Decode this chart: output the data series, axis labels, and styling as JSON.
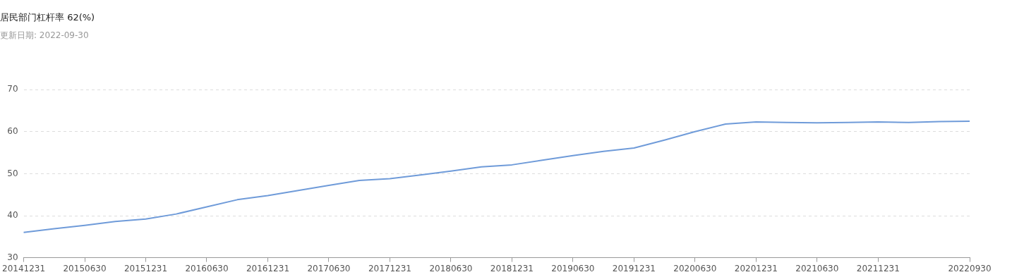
{
  "chart_data": {
    "type": "line",
    "title": "居民部门杠杆率 62(%)",
    "subtitle": "更新日期: 2022-09-30",
    "categories": [
      "20141231",
      null,
      "20150630",
      null,
      "20151231",
      null,
      "20160630",
      null,
      "20161231",
      null,
      "20170630",
      null,
      "20171231",
      null,
      "20180630",
      null,
      "20181231",
      null,
      "20190630",
      null,
      "20191231",
      null,
      "20200630",
      null,
      "20201231",
      null,
      "20210630",
      null,
      "20211231",
      null,
      null,
      "20220930"
    ],
    "series": [
      {
        "color": "#6f9bd9",
        "values": [
          36.0,
          36.9,
          37.7,
          38.6,
          39.2,
          40.4,
          42.1,
          43.8,
          44.8,
          46.0,
          47.2,
          48.4,
          48.8,
          49.7,
          50.6,
          51.6,
          52.1,
          53.2,
          54.3,
          55.3,
          56.1,
          58.0,
          60.0,
          61.8,
          62.3,
          62.2,
          62.1,
          62.2,
          62.3,
          62.2,
          62.4,
          62.5
        ]
      }
    ],
    "ylim": [
      30,
      70
    ],
    "yticks": [
      30,
      40,
      50,
      60,
      70
    ],
    "grid": "y",
    "legend": false,
    "marker": "none",
    "line_style": "solid"
  }
}
